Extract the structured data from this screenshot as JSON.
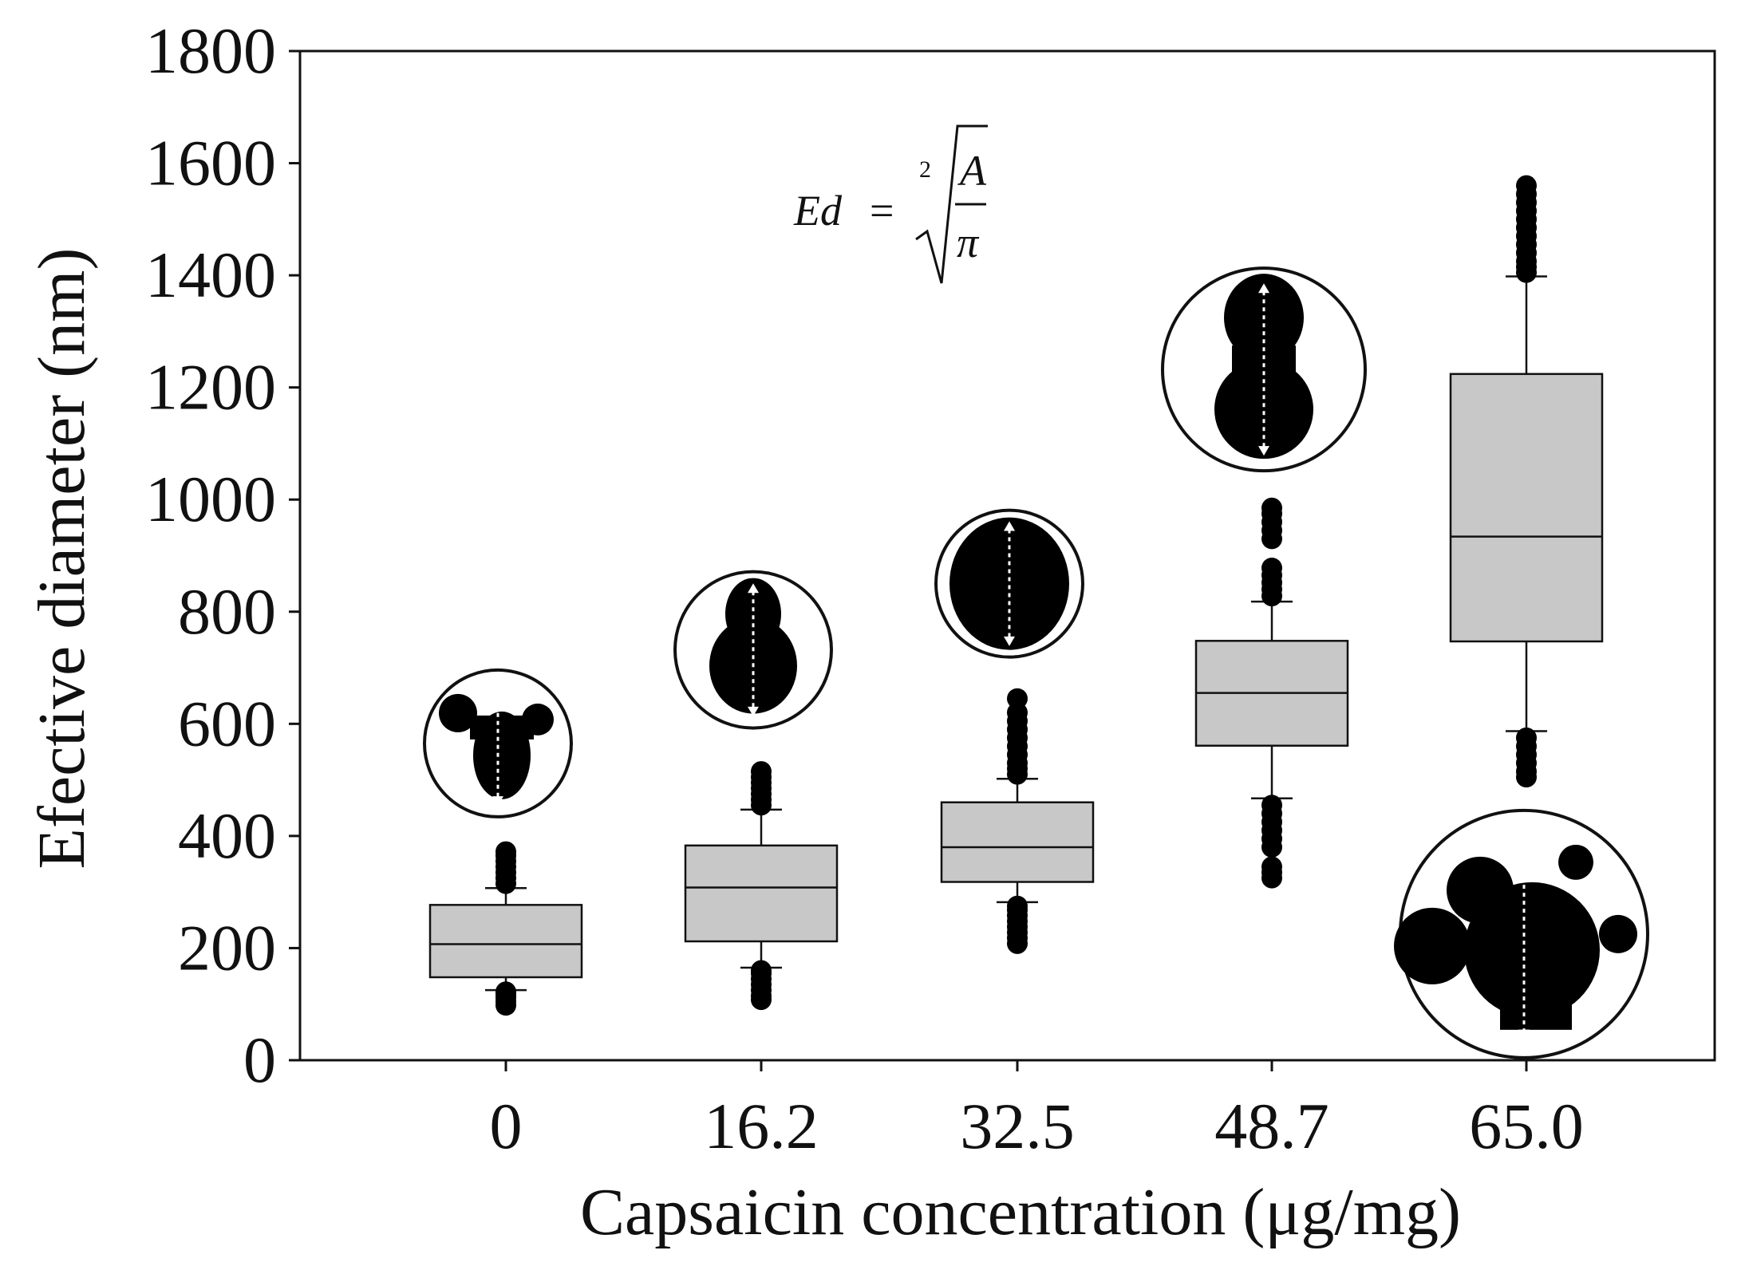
{
  "chart_data": {
    "type": "box",
    "title": "",
    "xlabel": "Capsaicin concentration (μg/mg)",
    "ylabel": "Efective diameter (nm)",
    "ylim": [
      0,
      1800
    ],
    "yticks": [
      "0",
      "200",
      "400",
      "600",
      "800",
      "1000",
      "1200",
      "1400",
      "1600",
      "1800"
    ],
    "categories": [
      "0",
      "16.2",
      "32.5",
      "48.7",
      "65.0"
    ],
    "boxes": [
      {
        "category": "0",
        "whisker_low": 125,
        "q1": 148,
        "median": 207,
        "q3": 277,
        "whisker_high": 307,
        "outliers": [
          98,
          105,
          112,
          118,
          122,
          315,
          325,
          335,
          345,
          355,
          365,
          372
        ]
      },
      {
        "category": "16.2",
        "whisker_low": 165,
        "q1": 212,
        "median": 308,
        "q3": 383,
        "whisker_high": 447,
        "outliers": [
          108,
          115,
          125,
          135,
          145,
          155,
          160,
          455,
          465,
          475,
          485,
          495,
          505,
          515
        ]
      },
      {
        "category": "32.5",
        "whisker_low": 282,
        "q1": 318,
        "median": 380,
        "q3": 460,
        "whisker_high": 502,
        "outliers": [
          208,
          218,
          228,
          238,
          248,
          258,
          268,
          275,
          510,
          520,
          530,
          545,
          560,
          575,
          590,
          605,
          620,
          645
        ]
      },
      {
        "category": "48.7",
        "whisker_low": 467,
        "q1": 561,
        "median": 655,
        "q3": 748,
        "whisker_high": 818,
        "outliers": [
          325,
          335,
          345,
          380,
          395,
          410,
          425,
          440,
          455,
          828,
          840,
          852,
          865,
          878,
          930,
          945,
          960,
          975,
          985
        ]
      },
      {
        "category": "65.0",
        "whisker_low": 587,
        "q1": 747,
        "median": 934,
        "q3": 1224,
        "whisker_high": 1398,
        "outliers": [
          505,
          515,
          530,
          545,
          560,
          575,
          1405,
          1415,
          1425,
          1440,
          1455,
          1470,
          1485,
          1500,
          1515,
          1530,
          1545,
          1560
        ]
      }
    ],
    "annotation": {
      "formula": {
        "lhs": "Ed",
        "eq": "=",
        "root_index": "2",
        "numerator": "A",
        "denominator": "π"
      }
    },
    "particle_insets": [
      {
        "category": "0",
        "center_value": 565,
        "shape": "cluster-small"
      },
      {
        "category": "16.2",
        "center_value": 732,
        "shape": "pear"
      },
      {
        "category": "32.5",
        "center_value": 850,
        "shape": "oval"
      },
      {
        "category": "48.7",
        "center_value": 1232,
        "shape": "peanut"
      },
      {
        "category": "65.0",
        "center_value": 225,
        "shape": "cluster-large"
      }
    ],
    "colors": {
      "box_fill": "#c8c8c8",
      "stroke": "#111111",
      "outlier": "#000000",
      "background": "#ffffff"
    }
  }
}
